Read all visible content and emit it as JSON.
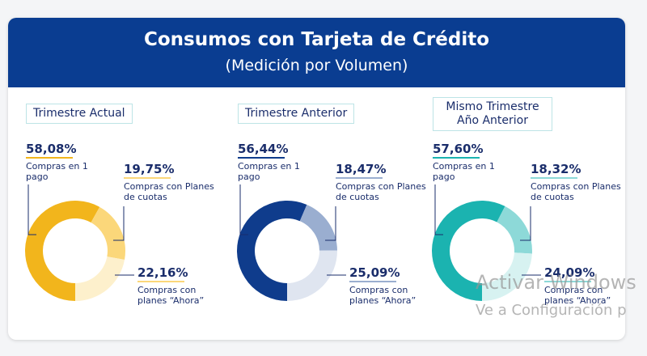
{
  "title": "Consumos con Tarjeta de Crédito",
  "subtitle": "(Medición por Volumen)",
  "watermark": [
    "Activar Windows",
    "Ve a Configuración p"
  ],
  "chart_data": [
    {
      "type": "donut",
      "title": "Trimestre Actual",
      "categories": [
        "Compras en 1 pago",
        "Compras con Planes de cuotas",
        "Compras con planes “Ahora”"
      ],
      "values": [
        58.08,
        19.75,
        22.16
      ],
      "value_labels": [
        "58,08%",
        "19,75%",
        "22,16%"
      ],
      "colors": [
        "#f2b51c",
        "#fbd77a",
        "#fdf0cc"
      ]
    },
    {
      "type": "donut",
      "title": "Trimestre Anterior",
      "categories": [
        "Compras en 1 pago",
        "Compras con Planes de cuotas",
        "Compras con planes “Ahora”"
      ],
      "values": [
        56.44,
        18.47,
        25.09
      ],
      "value_labels": [
        "56,44%",
        "18,47%",
        "25,09%"
      ],
      "colors": [
        "#0f3c8c",
        "#9aaed0",
        "#dfe5f0"
      ]
    },
    {
      "type": "donut",
      "title": "Mismo Trimestre Año Anterior",
      "categories": [
        "Compras en 1 pago",
        "Compras con Planes de cuotas",
        "Compras con planes “Ahora”"
      ],
      "values": [
        57.6,
        18.32,
        24.09
      ],
      "value_labels": [
        "57,60%",
        "18,32%",
        "24,09%"
      ],
      "colors": [
        "#1bb3b0",
        "#8dd9d8",
        "#d7f2f1"
      ]
    }
  ]
}
